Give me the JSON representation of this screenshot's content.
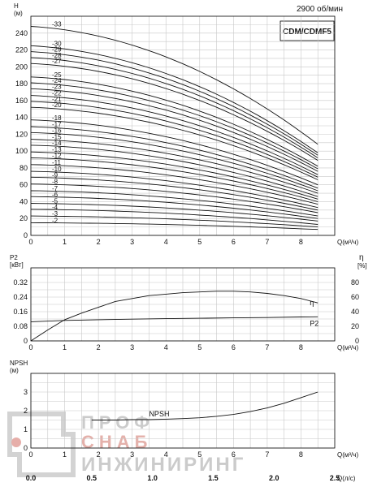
{
  "header": {
    "speed": "2900 об/мин",
    "model": "CDM/CDMF5"
  },
  "chart_data": [
    {
      "type": "line",
      "name": "head",
      "ylabel": "H",
      "yunit": "(м)",
      "xlabel": "Q(м³/ч)",
      "xlim": [
        0,
        9
      ],
      "ylim": [
        0,
        260
      ],
      "xticks": [
        "0",
        "1",
        "2",
        "3",
        "4",
        "5",
        "6",
        "7",
        "8"
      ],
      "yticks": [
        "0",
        "20",
        "40",
        "60",
        "80",
        "100",
        "120",
        "140",
        "160",
        "180",
        "200",
        "220",
        "240"
      ],
      "grid": true,
      "series": [
        {
          "name": "-33",
          "h0": 248,
          "h8_5": 108
        },
        {
          "name": "-30",
          "h0": 225,
          "h8_5": 98
        },
        {
          "name": "-29",
          "h0": 218,
          "h8_5": 95
        },
        {
          "name": "-28",
          "h0": 211,
          "h8_5": 92
        },
        {
          "name": "-27",
          "h0": 204,
          "h8_5": 89
        },
        {
          "name": "-25",
          "h0": 188,
          "h8_5": 82
        },
        {
          "name": "-24",
          "h0": 181,
          "h8_5": 79
        },
        {
          "name": "-23",
          "h0": 174,
          "h8_5": 76
        },
        {
          "name": "-22",
          "h0": 166,
          "h8_5": 72
        },
        {
          "name": "-21",
          "h0": 159,
          "h8_5": 69
        },
        {
          "name": "-20",
          "h0": 152,
          "h8_5": 66
        },
        {
          "name": "-18",
          "h0": 137,
          "h8_5": 60
        },
        {
          "name": "-17",
          "h0": 129,
          "h8_5": 56
        },
        {
          "name": "-16",
          "h0": 122,
          "h8_5": 53
        },
        {
          "name": "-15",
          "h0": 114,
          "h8_5": 50
        },
        {
          "name": "-14",
          "h0": 107,
          "h8_5": 46
        },
        {
          "name": "-13",
          "h0": 99,
          "h8_5": 43
        },
        {
          "name": "-12",
          "h0": 92,
          "h8_5": 40
        },
        {
          "name": "-11",
          "h0": 84,
          "h8_5": 37
        },
        {
          "name": "-10",
          "h0": 76,
          "h8_5": 33
        },
        {
          "name": "-9",
          "h0": 69,
          "h8_5": 30
        },
        {
          "name": "-8",
          "h0": 61,
          "h8_5": 27
        },
        {
          "name": "-7",
          "h0": 53,
          "h8_5": 23
        },
        {
          "name": "-6",
          "h0": 46,
          "h8_5": 20
        },
        {
          "name": "-5",
          "h0": 38,
          "h8_5": 17
        },
        {
          "name": "-4",
          "h0": 31,
          "h8_5": 13
        },
        {
          "name": "-3",
          "h0": 23,
          "h8_5": 10
        },
        {
          "name": "-2",
          "h0": 15,
          "h8_5": 7
        }
      ]
    },
    {
      "type": "line",
      "name": "power-efficiency",
      "ylabel": "P2",
      "yunit": "[кВт]",
      "y2label": "η",
      "y2unit": "[%]",
      "xlabel": "Q(м³/ч)",
      "xlim": [
        0,
        9
      ],
      "ylim": [
        0,
        0.4
      ],
      "y2lim": [
        0,
        100
      ],
      "xticks": [
        "0",
        "1",
        "2",
        "3",
        "4",
        "5",
        "6",
        "7",
        "8"
      ],
      "yticks": [
        "0",
        "0.08",
        "0.16",
        "0.24",
        "0.32"
      ],
      "y2ticks": [
        "0",
        "20",
        "40",
        "60",
        "80"
      ],
      "grid": true,
      "series": [
        {
          "name": "η",
          "axis": "right",
          "x": [
            0,
            0.5,
            1,
            1.5,
            2,
            2.5,
            3,
            3.5,
            4,
            4.5,
            5,
            5.5,
            6,
            6.5,
            7,
            7.5,
            8,
            8.5
          ],
          "y": [
            0,
            15,
            29,
            38,
            46,
            54,
            58,
            62,
            64,
            66,
            67,
            68,
            68,
            67,
            65,
            62,
            58,
            52
          ]
        },
        {
          "name": "P2",
          "axis": "left",
          "x": [
            0,
            1,
            2,
            3,
            4,
            5,
            6,
            7,
            8,
            8.5
          ],
          "y": [
            0.105,
            0.112,
            0.116,
            0.119,
            0.122,
            0.124,
            0.126,
            0.128,
            0.131,
            0.132
          ]
        }
      ]
    },
    {
      "type": "line",
      "name": "npsh",
      "ylabel": "NPSH",
      "yunit": "(м)",
      "xlabel": "Q(м³/ч)",
      "x2label": "Q(л/с)",
      "xlim": [
        0,
        9
      ],
      "ylim": [
        0,
        4
      ],
      "xticks": [
        "0",
        "1",
        "2",
        "3",
        "4",
        "5",
        "6",
        "7",
        "8"
      ],
      "x2ticks": [
        "0.0",
        "0.5",
        "1.0",
        "1.5",
        "2.0",
        "2.5"
      ],
      "yticks": [
        "0",
        "1",
        "2",
        "3"
      ],
      "grid": true,
      "series": [
        {
          "name": "NPSH",
          "x": [
            1.8,
            2.5,
            3,
            3.5,
            4,
            4.5,
            5,
            5.5,
            6,
            6.5,
            7,
            7.5,
            8,
            8.5
          ],
          "y": [
            1.5,
            1.5,
            1.52,
            1.52,
            1.55,
            1.58,
            1.62,
            1.7,
            1.8,
            1.95,
            2.15,
            2.4,
            2.7,
            3.0
          ]
        }
      ]
    }
  ],
  "watermark": {
    "line1": "ПРОФ",
    "line2": "СНАБ",
    "line3": "ИНЖИНИРИНГ"
  }
}
